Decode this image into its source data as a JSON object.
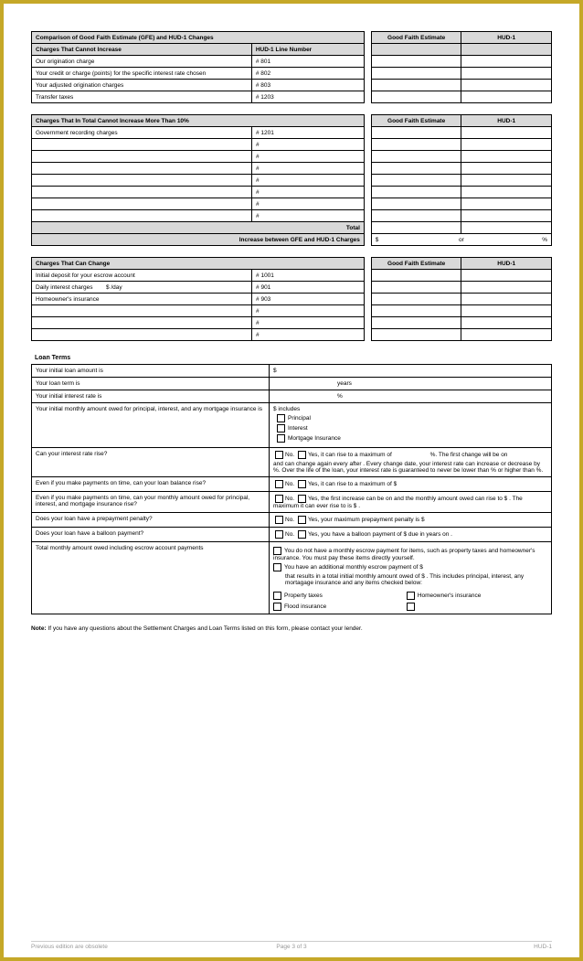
{
  "colors": {
    "border": "#c5a828",
    "header_bg": "#d9d9d9",
    "text": "#000000"
  },
  "section1": {
    "title": "Comparison of Good Faith Estimate (GFE) and HUD-1 Changes",
    "col_gfe": "Good Faith Estimate",
    "col_hud": "HUD-1",
    "sub_label": "Charges That Cannot Increase",
    "sub_col": "HUD-1 Line Number",
    "rows": [
      {
        "label": "Our origination charge",
        "num": "# 801"
      },
      {
        "label": "Your credit or charge (points) for the specific interest rate chosen",
        "num": "# 802"
      },
      {
        "label": "Your adjusted origination charges",
        "num": "# 803"
      },
      {
        "label": "Transfer taxes",
        "num": "# 1203"
      }
    ]
  },
  "section2": {
    "title": "Charges That In Total Cannot Increase More Than 10%",
    "col_gfe": "Good Faith Estimate",
    "col_hud": "HUD-1",
    "rows": [
      {
        "label": "Government recording charges",
        "num": "# 1201"
      },
      {
        "label": "",
        "num": "#"
      },
      {
        "label": "",
        "num": "#"
      },
      {
        "label": "",
        "num": "#"
      },
      {
        "label": "",
        "num": "#"
      },
      {
        "label": "",
        "num": "#"
      },
      {
        "label": "",
        "num": "#"
      },
      {
        "label": "",
        "num": "#"
      }
    ],
    "total_label": "Total",
    "increase_label": "Increase between GFE and HUD-1 Charges",
    "dollar": "$",
    "or": "or",
    "pct": "%"
  },
  "section3": {
    "title": "Charges That Can Change",
    "col_gfe": "Good Faith Estimate",
    "col_hud": "HUD-1",
    "rows": [
      {
        "label": "Initial deposit for your escrow account",
        "mid": "",
        "num": "# 1001"
      },
      {
        "label": "Daily interest charges",
        "mid": "$                                    /day",
        "num": "# 901"
      },
      {
        "label": "Homeowner's insurance",
        "mid": "",
        "num": "# 903"
      },
      {
        "label": "",
        "mid": "",
        "num": "#"
      },
      {
        "label": "",
        "mid": "",
        "num": "#"
      },
      {
        "label": "",
        "mid": "",
        "num": "#"
      }
    ]
  },
  "loan": {
    "header": "Loan Terms",
    "r1_l": "Your initial loan amount is",
    "r1_r": "$",
    "r2_l": "Your loan term is",
    "r2_r": "years",
    "r3_l": "Your initial interest rate is",
    "r3_r": "%",
    "r4_l": "Your initial monthly amount owed for principal, interest, and any mortgage insurance is",
    "r4_r_a": "$                            includes",
    "r4_r_b": "Principal",
    "r4_r_c": "Interest",
    "r4_r_d": "Mortgage Insurance",
    "r5_l": "Can your interest rate rise?",
    "r5_no": "No.",
    "r5_yes": "Yes, it can rise to a maximum of",
    "r5_t1": "%. The first change will be on",
    "r5_t2": "and can change again every                                    after                               . Every change date, your interest rate can increase or decrease by                    %. Over the life of the loan, your interest rate is guaranteed to never be lower than                    % or higher than                %.",
    "r6_l": "Even if you make payments on time, can your loan balance rise?",
    "r6_no": "No.",
    "r6_yes": "Yes, it can rise to a maximum of $",
    "r7_l": "Even if you make payments on time, can your monthly amount owed for principal, interest, and mortgage insurance rise?",
    "r7_no": "No.",
    "r7_yes": "Yes, the first increase can be on                            and the monthly amount owed can rise to $                        . The maximum it can ever rise to is $                              .",
    "r8_l": "Does your loan have a prepayment penalty?",
    "r8_no": "No.",
    "r8_yes": "Yes, your maximum prepayment penalty is $",
    "r9_l": "Does your loan have a balloon payment?",
    "r9_no": "No.",
    "r9_yes": "Yes, you have a balloon payment of $                              due in                  years on                    .",
    "r10_l": "Total monthly amount owed including escrow account payments",
    "r10_a": "You do not have a monthly escrow payment for items, such as property taxes and homeowner's insurance. You must pay these items directly yourself.",
    "r10_b": "You have an additional monthly escrow payment of $",
    "r10_c": "that results in a total initial monthly amount owed of $                              . This includes principal, interest, any mortagage insurance and any items checked below:",
    "r10_d": "Property taxes",
    "r10_e": "Homeowner's insurance",
    "r10_f": "Flood insurance"
  },
  "note": "Note: If you have any questions about the Settlement Charges and Loan Terms listed on this form, please contact your lender.",
  "footer_left": "Previous edition are obsolete",
  "footer_center": "Page 3 of 3",
  "footer_right": "HUD-1"
}
